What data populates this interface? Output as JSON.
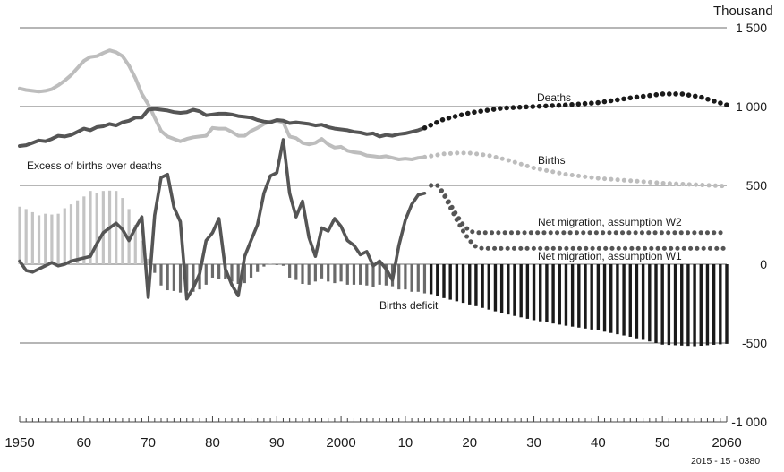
{
  "chart_data": {
    "type": "line",
    "unit": "Thousand",
    "source_id": "2015 - 15 - 0380",
    "x_tick_labels": [
      {
        "x": 1950,
        "label": "1950"
      },
      {
        "x": 1960,
        "label": "60"
      },
      {
        "x": 1970,
        "label": "70"
      },
      {
        "x": 1980,
        "label": "80"
      },
      {
        "x": 1990,
        "label": "90"
      },
      {
        "x": 2000,
        "label": "2000"
      },
      {
        "x": 2010,
        "label": "10"
      },
      {
        "x": 2020,
        "label": "20"
      },
      {
        "x": 2030,
        "label": "30"
      },
      {
        "x": 2040,
        "label": "40"
      },
      {
        "x": 2050,
        "label": "50"
      },
      {
        "x": 2060,
        "label": "2060"
      }
    ],
    "y_tick_labels": [
      {
        "y": 1500,
        "label": "1 500"
      },
      {
        "y": 1000,
        "label": "1 000"
      },
      {
        "y": 500,
        "label": "500"
      },
      {
        "y": 0,
        "label": "0"
      },
      {
        "y": -500,
        "label": "-500"
      },
      {
        "y": -1000,
        "label": "-1 000"
      }
    ],
    "xlim": [
      1950,
      2060
    ],
    "ylim": [
      -1000,
      1500
    ],
    "grid": true,
    "annotations": {
      "deaths": "Deaths",
      "births": "Births",
      "excess": "Excess of births over deaths",
      "deficit": "Births deficit",
      "w2": "Net migration, assumption W2",
      "w1": "Net migration, assumption W1"
    },
    "years": [
      1950,
      1951,
      1952,
      1953,
      1954,
      1955,
      1956,
      1957,
      1958,
      1959,
      1960,
      1961,
      1962,
      1963,
      1964,
      1965,
      1966,
      1967,
      1968,
      1969,
      1970,
      1971,
      1972,
      1973,
      1974,
      1975,
      1976,
      1977,
      1978,
      1979,
      1980,
      1981,
      1982,
      1983,
      1984,
      1985,
      1986,
      1987,
      1988,
      1989,
      1990,
      1991,
      1992,
      1993,
      1994,
      1995,
      1996,
      1997,
      1998,
      1999,
      2000,
      2001,
      2002,
      2003,
      2004,
      2005,
      2006,
      2007,
      2008,
      2009,
      2010,
      2011,
      2012,
      2013
    ],
    "series": [
      {
        "key": "births",
        "values": [
          1115,
          1105,
          1100,
          1095,
          1100,
          1110,
          1135,
          1165,
          1200,
          1245,
          1290,
          1315,
          1320,
          1340,
          1357,
          1345,
          1320,
          1260,
          1180,
          1080,
          1015,
          930,
          845,
          810,
          795,
          780,
          795,
          805,
          810,
          815,
          865,
          860,
          860,
          840,
          815,
          815,
          845,
          865,
          890,
          905,
          910,
          900,
          810,
          800,
          770,
          760,
          770,
          795,
          760,
          740,
          745,
          720,
          710,
          705,
          690,
          685,
          680,
          685,
          675,
          665,
          670,
          665,
          675,
          680
        ],
        "color": "#bdbdbd"
      },
      {
        "key": "deaths",
        "values": [
          750,
          755,
          770,
          785,
          780,
          795,
          815,
          810,
          820,
          840,
          860,
          850,
          870,
          875,
          890,
          880,
          900,
          910,
          930,
          930,
          980,
          985,
          980,
          975,
          965,
          960,
          965,
          980,
          970,
          945,
          950,
          955,
          955,
          950,
          940,
          935,
          930,
          915,
          905,
          900,
          915,
          910,
          895,
          900,
          895,
          890,
          880,
          885,
          870,
          860,
          855,
          850,
          840,
          835,
          825,
          830,
          810,
          820,
          815,
          825,
          830,
          840,
          850,
          865
        ]
      },
      {
        "key": "natural_balance",
        "values": [
          365,
          350,
          330,
          310,
          320,
          315,
          320,
          355,
          380,
          405,
          430,
          465,
          450,
          465,
          467,
          465,
          420,
          350,
          250,
          150,
          35,
          -55,
          -135,
          -165,
          -170,
          -180,
          -170,
          -175,
          -160,
          -130,
          -85,
          -95,
          -95,
          -110,
          -125,
          -120,
          -85,
          -50,
          -15,
          5,
          -5,
          -10,
          -85,
          -100,
          -125,
          -130,
          -110,
          -90,
          -110,
          -120,
          -110,
          -130,
          -130,
          -130,
          -135,
          -145,
          -130,
          -135,
          -140,
          -160,
          -160,
          -175,
          -175,
          -185
        ]
      },
      {
        "key": "net_migration",
        "values": [
          20,
          -40,
          -50,
          -30,
          -10,
          10,
          -10,
          0,
          20,
          30,
          40,
          50,
          130,
          200,
          230,
          260,
          220,
          150,
          230,
          300,
          -210,
          310,
          550,
          570,
          360,
          270,
          -220,
          -150,
          -60,
          150,
          200,
          290,
          -30,
          -130,
          -200,
          50,
          150,
          250,
          450,
          560,
          580,
          790,
          450,
          300,
          400,
          170,
          50,
          230,
          210,
          290,
          240,
          150,
          120,
          60,
          80,
          -10,
          20,
          -30,
          -100,
          120,
          280,
          380,
          440,
          450
        ],
        "color": "#555555"
      },
      {
        "key": "deaths_projection",
        "x": [
          2013,
          2016,
          2020,
          2025,
          2030,
          2035,
          2040,
          2045,
          2050,
          2053,
          2056,
          2060
        ],
        "values": [
          865,
          920,
          960,
          990,
          1000,
          1010,
          1025,
          1055,
          1080,
          1080,
          1060,
          1010
        ],
        "color": "#1a1a1a"
      },
      {
        "key": "births_projection",
        "x": [
          2013,
          2016,
          2018,
          2020,
          2023,
          2026,
          2030,
          2035,
          2040,
          2045,
          2050,
          2055,
          2060
        ],
        "values": [
          680,
          700,
          705,
          705,
          690,
          660,
          610,
          570,
          545,
          530,
          515,
          505,
          495
        ],
        "color": "#bdbdbd"
      },
      {
        "key": "natural_balance_projection",
        "x": [
          2014,
          2016,
          2020,
          2025,
          2030,
          2035,
          2040,
          2045,
          2050,
          2055,
          2060
        ],
        "values": [
          -190,
          -215,
          -255,
          -310,
          -355,
          -390,
          -420,
          -460,
          -510,
          -520,
          -505
        ],
        "color": "#1a1a1a"
      },
      {
        "key": "migration_w2",
        "x": [
          2014,
          2015,
          2016,
          2017,
          2018,
          2019,
          2020,
          2021,
          2060
        ],
        "values": [
          500,
          500,
          450,
          380,
          310,
          250,
          210,
          200,
          200
        ],
        "color": "#555555"
      },
      {
        "key": "migration_w1",
        "x": [
          2014,
          2015,
          2016,
          2017,
          2018,
          2019,
          2020,
          2021,
          2022,
          2060
        ],
        "values": [
          500,
          500,
          440,
          360,
          280,
          210,
          150,
          110,
          100,
          100
        ],
        "color": "#555555"
      }
    ]
  }
}
